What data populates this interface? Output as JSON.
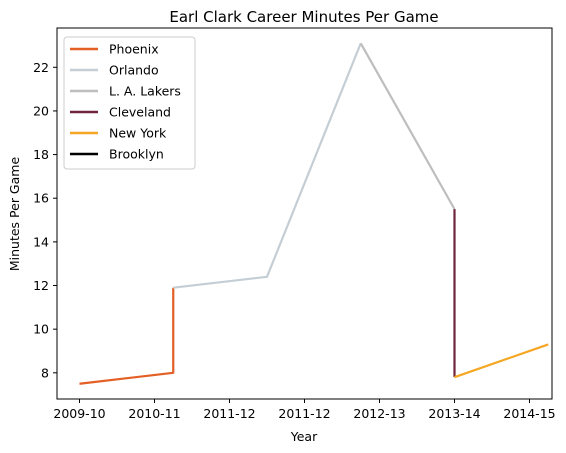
{
  "chart_data": {
    "type": "line",
    "title": "Earl Clark Career Minutes Per Game",
    "xlabel": "Year",
    "ylabel": "Minutes Per Game",
    "x_tick_labels": [
      "2009-10",
      "2010-11",
      "2011-12",
      "2011-12",
      "2012-13",
      "2013-14",
      "2014-15"
    ],
    "xlim": [
      -0.3,
      6.3
    ],
    "ylim": [
      6.8,
      23.8
    ],
    "y_ticks": [
      8,
      10,
      12,
      14,
      16,
      18,
      20,
      22
    ],
    "grid": false,
    "legend_position": "top-left",
    "series": [
      {
        "name": "Phoenix",
        "color": "#e35f24",
        "points": [
          [
            0,
            7.5
          ],
          [
            1.25,
            8.0
          ],
          [
            1.25,
            11.9
          ]
        ]
      },
      {
        "name": "Orlando",
        "color": "#c4ced4",
        "points": [
          [
            1.25,
            11.9
          ],
          [
            2.5,
            12.4
          ],
          [
            3.75,
            23.1
          ]
        ]
      },
      {
        "name": "L. A. Lakers",
        "color": "#bebebe",
        "points": [
          [
            3.75,
            23.1
          ],
          [
            5.0,
            15.5
          ]
        ]
      },
      {
        "name": "Cleveland",
        "color": "#6f263d",
        "points": [
          [
            5.0,
            15.5
          ],
          [
            5.0,
            7.8
          ]
        ]
      },
      {
        "name": "New York",
        "color": "#f5a623",
        "points": [
          [
            5.0,
            7.8
          ],
          [
            6.25,
            9.3
          ]
        ]
      },
      {
        "name": "Brooklyn",
        "color": "#000000",
        "points": []
      }
    ]
  }
}
